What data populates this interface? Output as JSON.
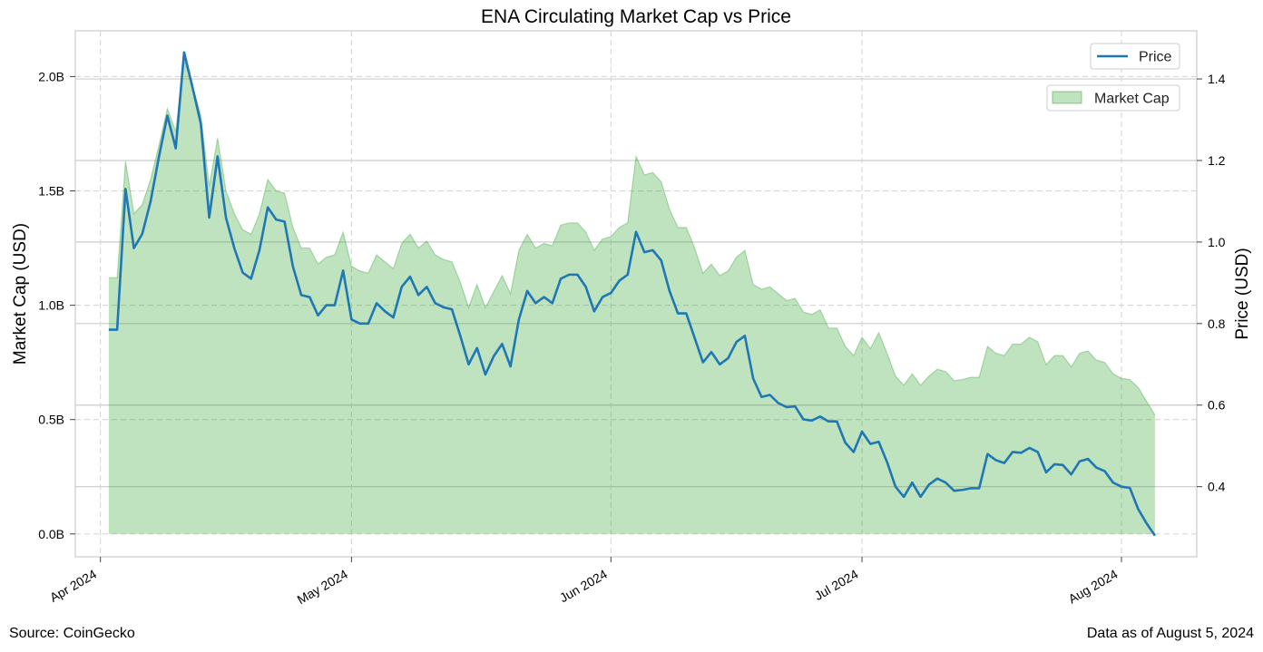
{
  "chart_data": {
    "type": "line",
    "title": "ENA Circulating Market Cap vs Price",
    "xlabel": "",
    "ylabel_left": "Market Cap (USD)",
    "ylabel_right": "Price (USD)",
    "x_ticks": [
      "Apr 2024",
      "May 2024",
      "Jun 2024",
      "Jul 2024",
      "Aug 2024"
    ],
    "x_range": [
      "2024-03-29",
      "2024-08-10"
    ],
    "y_left_range": [
      -0.1,
      2.2
    ],
    "y_left_ticks": [
      0,
      0.5,
      1.0,
      1.5,
      2.0
    ],
    "y_left_tick_labels": [
      "0.0B",
      "0.5B",
      "1.0B",
      "1.5B",
      "2.0B"
    ],
    "y_right_range": [
      0.228,
      1.518
    ],
    "y_right_ticks": [
      0.4,
      0.6,
      0.8,
      1.0,
      1.2,
      1.4
    ],
    "y_right_tick_labels": [
      "0.4",
      "0.6",
      "0.8",
      "1.0",
      "1.2",
      "1.4"
    ],
    "grid": true,
    "legend_top": "top-right",
    "legend_second": "top-right, below first",
    "series": [
      {
        "name": "Price",
        "axis": "right",
        "color": "#1f77b4",
        "type": "line",
        "points": [
          [
            "2024-04-02",
            0.785
          ],
          [
            "2024-04-03",
            0.785
          ],
          [
            "2024-04-04",
            1.13
          ],
          [
            "2024-04-05",
            0.985
          ],
          [
            "2024-04-06",
            1.02
          ],
          [
            "2024-04-07",
            1.1
          ],
          [
            "2024-04-08",
            1.21
          ],
          [
            "2024-04-09",
            1.31
          ],
          [
            "2024-04-10",
            1.23
          ],
          [
            "2024-04-11",
            1.465
          ],
          [
            "2024-04-12",
            1.38
          ],
          [
            "2024-04-13",
            1.29
          ],
          [
            "2024-04-14",
            1.06
          ],
          [
            "2024-04-15",
            1.21
          ],
          [
            "2024-04-16",
            1.06
          ],
          [
            "2024-04-17",
            0.985
          ],
          [
            "2024-04-18",
            0.925
          ],
          [
            "2024-04-19",
            0.91
          ],
          [
            "2024-04-20",
            0.98
          ],
          [
            "2024-04-21",
            1.085
          ],
          [
            "2024-04-22",
            1.055
          ],
          [
            "2024-04-23",
            1.05
          ],
          [
            "2024-04-24",
            0.94
          ],
          [
            "2024-04-25",
            0.87
          ],
          [
            "2024-04-26",
            0.865
          ],
          [
            "2024-04-27",
            0.82
          ],
          [
            "2024-04-28",
            0.845
          ],
          [
            "2024-04-29",
            0.845
          ],
          [
            "2024-04-30",
            0.93
          ],
          [
            "2024-05-01",
            0.81
          ],
          [
            "2024-05-02",
            0.8
          ],
          [
            "2024-05-03",
            0.8
          ],
          [
            "2024-05-04",
            0.85
          ],
          [
            "2024-05-05",
            0.83
          ],
          [
            "2024-05-06",
            0.815
          ],
          [
            "2024-05-07",
            0.89
          ],
          [
            "2024-05-08",
            0.915
          ],
          [
            "2024-05-09",
            0.87
          ],
          [
            "2024-05-10",
            0.89
          ],
          [
            "2024-05-11",
            0.85
          ],
          [
            "2024-05-12",
            0.84
          ],
          [
            "2024-05-13",
            0.835
          ],
          [
            "2024-05-14",
            0.77
          ],
          [
            "2024-05-15",
            0.7
          ],
          [
            "2024-05-16",
            0.74
          ],
          [
            "2024-05-17",
            0.675
          ],
          [
            "2024-05-18",
            0.72
          ],
          [
            "2024-05-19",
            0.75
          ],
          [
            "2024-05-20",
            0.695
          ],
          [
            "2024-05-21",
            0.81
          ],
          [
            "2024-05-22",
            0.88
          ],
          [
            "2024-05-23",
            0.85
          ],
          [
            "2024-05-24",
            0.865
          ],
          [
            "2024-05-25",
            0.85
          ],
          [
            "2024-05-26",
            0.91
          ],
          [
            "2024-05-27",
            0.92
          ],
          [
            "2024-05-28",
            0.92
          ],
          [
            "2024-05-29",
            0.89
          ],
          [
            "2024-05-30",
            0.83
          ],
          [
            "2024-05-31",
            0.865
          ],
          [
            "2024-06-01",
            0.875
          ],
          [
            "2024-06-02",
            0.905
          ],
          [
            "2024-06-03",
            0.92
          ],
          [
            "2024-06-04",
            1.025
          ],
          [
            "2024-06-05",
            0.975
          ],
          [
            "2024-06-06",
            0.98
          ],
          [
            "2024-06-07",
            0.955
          ],
          [
            "2024-06-08",
            0.88
          ],
          [
            "2024-06-09",
            0.825
          ],
          [
            "2024-06-10",
            0.825
          ],
          [
            "2024-06-11",
            0.765
          ],
          [
            "2024-06-12",
            0.705
          ],
          [
            "2024-06-13",
            0.73
          ],
          [
            "2024-06-14",
            0.7
          ],
          [
            "2024-06-15",
            0.715
          ],
          [
            "2024-06-16",
            0.755
          ],
          [
            "2024-06-17",
            0.77
          ],
          [
            "2024-06-18",
            0.665
          ],
          [
            "2024-06-19",
            0.62
          ],
          [
            "2024-06-20",
            0.625
          ],
          [
            "2024-06-21",
            0.605
          ],
          [
            "2024-06-22",
            0.595
          ],
          [
            "2024-06-23",
            0.597
          ],
          [
            "2024-06-24",
            0.565
          ],
          [
            "2024-06-25",
            0.562
          ],
          [
            "2024-06-26",
            0.572
          ],
          [
            "2024-06-27",
            0.56
          ],
          [
            "2024-06-28",
            0.56
          ],
          [
            "2024-06-29",
            0.508
          ],
          [
            "2024-06-30",
            0.485
          ],
          [
            "2024-07-01",
            0.535
          ],
          [
            "2024-07-02",
            0.505
          ],
          [
            "2024-07-03",
            0.51
          ],
          [
            "2024-07-04",
            0.46
          ],
          [
            "2024-07-05",
            0.4
          ],
          [
            "2024-07-06",
            0.375
          ],
          [
            "2024-07-07",
            0.41
          ],
          [
            "2024-07-08",
            0.375
          ],
          [
            "2024-07-09",
            0.405
          ],
          [
            "2024-07-10",
            0.42
          ],
          [
            "2024-07-11",
            0.41
          ],
          [
            "2024-07-12",
            0.39
          ],
          [
            "2024-07-13",
            0.392
          ],
          [
            "2024-07-14",
            0.396
          ],
          [
            "2024-07-15",
            0.396
          ],
          [
            "2024-07-16",
            0.48
          ],
          [
            "2024-07-17",
            0.465
          ],
          [
            "2024-07-18",
            0.458
          ],
          [
            "2024-07-19",
            0.485
          ],
          [
            "2024-07-20",
            0.483
          ],
          [
            "2024-07-21",
            0.495
          ],
          [
            "2024-07-22",
            0.485
          ],
          [
            "2024-07-23",
            0.435
          ],
          [
            "2024-07-24",
            0.455
          ],
          [
            "2024-07-25",
            0.453
          ],
          [
            "2024-07-26",
            0.43
          ],
          [
            "2024-07-27",
            0.462
          ],
          [
            "2024-07-28",
            0.468
          ],
          [
            "2024-07-29",
            0.447
          ],
          [
            "2024-07-30",
            0.438
          ],
          [
            "2024-07-31",
            0.41
          ],
          [
            "2024-08-01",
            0.4
          ],
          [
            "2024-08-02",
            0.397
          ],
          [
            "2024-08-03",
            0.345
          ],
          [
            "2024-08-04",
            0.31
          ],
          [
            "2024-08-05",
            0.28
          ]
        ]
      },
      {
        "name": "Market Cap",
        "axis": "left",
        "color": "#2ca02c",
        "type": "area",
        "points": [
          [
            "2024-04-02",
            1.12
          ],
          [
            "2024-04-03",
            1.12
          ],
          [
            "2024-04-04",
            1.63
          ],
          [
            "2024-04-05",
            1.4
          ],
          [
            "2024-04-06",
            1.44
          ],
          [
            "2024-04-07",
            1.55
          ],
          [
            "2024-04-08",
            1.7
          ],
          [
            "2024-04-09",
            1.86
          ],
          [
            "2024-04-10",
            1.76
          ],
          [
            "2024-04-11",
            2.07
          ],
          [
            "2024-04-12",
            1.96
          ],
          [
            "2024-04-13",
            1.83
          ],
          [
            "2024-04-14",
            1.52
          ],
          [
            "2024-04-15",
            1.73
          ],
          [
            "2024-04-16",
            1.5
          ],
          [
            "2024-04-17",
            1.4
          ],
          [
            "2024-04-18",
            1.33
          ],
          [
            "2024-04-19",
            1.31
          ],
          [
            "2024-04-20",
            1.4
          ],
          [
            "2024-04-21",
            1.55
          ],
          [
            "2024-04-22",
            1.5
          ],
          [
            "2024-04-23",
            1.49
          ],
          [
            "2024-04-24",
            1.34
          ],
          [
            "2024-04-25",
            1.25
          ],
          [
            "2024-04-26",
            1.25
          ],
          [
            "2024-04-27",
            1.18
          ],
          [
            "2024-04-28",
            1.21
          ],
          [
            "2024-04-29",
            1.22
          ],
          [
            "2024-04-30",
            1.32
          ],
          [
            "2024-05-01",
            1.17
          ],
          [
            "2024-05-02",
            1.15
          ],
          [
            "2024-05-03",
            1.14
          ],
          [
            "2024-05-04",
            1.22
          ],
          [
            "2024-05-05",
            1.19
          ],
          [
            "2024-05-06",
            1.16
          ],
          [
            "2024-05-07",
            1.27
          ],
          [
            "2024-05-08",
            1.31
          ],
          [
            "2024-05-09",
            1.25
          ],
          [
            "2024-05-10",
            1.28
          ],
          [
            "2024-05-11",
            1.22
          ],
          [
            "2024-05-12",
            1.2
          ],
          [
            "2024-05-13",
            1.19
          ],
          [
            "2024-05-14",
            1.1
          ],
          [
            "2024-05-15",
            0.99
          ],
          [
            "2024-05-16",
            1.09
          ],
          [
            "2024-05-17",
            0.99
          ],
          [
            "2024-05-18",
            1.06
          ],
          [
            "2024-05-19",
            1.13
          ],
          [
            "2024-05-20",
            1.05
          ],
          [
            "2024-05-21",
            1.24
          ],
          [
            "2024-05-22",
            1.31
          ],
          [
            "2024-05-23",
            1.25
          ],
          [
            "2024-05-24",
            1.27
          ],
          [
            "2024-05-25",
            1.26
          ],
          [
            "2024-05-26",
            1.35
          ],
          [
            "2024-05-27",
            1.36
          ],
          [
            "2024-05-28",
            1.36
          ],
          [
            "2024-05-29",
            1.32
          ],
          [
            "2024-05-30",
            1.24
          ],
          [
            "2024-05-31",
            1.29
          ],
          [
            "2024-06-01",
            1.3
          ],
          [
            "2024-06-02",
            1.34
          ],
          [
            "2024-06-03",
            1.36
          ],
          [
            "2024-06-04",
            1.65
          ],
          [
            "2024-06-05",
            1.57
          ],
          [
            "2024-06-06",
            1.58
          ],
          [
            "2024-06-07",
            1.54
          ],
          [
            "2024-06-08",
            1.42
          ],
          [
            "2024-06-09",
            1.34
          ],
          [
            "2024-06-10",
            1.34
          ],
          [
            "2024-06-11",
            1.25
          ],
          [
            "2024-06-12",
            1.14
          ],
          [
            "2024-06-13",
            1.18
          ],
          [
            "2024-06-14",
            1.13
          ],
          [
            "2024-06-15",
            1.15
          ],
          [
            "2024-06-16",
            1.21
          ],
          [
            "2024-06-17",
            1.24
          ],
          [
            "2024-06-18",
            1.09
          ],
          [
            "2024-06-19",
            1.07
          ],
          [
            "2024-06-20",
            1.08
          ],
          [
            "2024-06-21",
            1.05
          ],
          [
            "2024-06-22",
            1.02
          ],
          [
            "2024-06-23",
            1.03
          ],
          [
            "2024-06-24",
            0.97
          ],
          [
            "2024-06-25",
            0.96
          ],
          [
            "2024-06-26",
            0.98
          ],
          [
            "2024-06-27",
            0.9
          ],
          [
            "2024-06-28",
            0.9
          ],
          [
            "2024-06-29",
            0.82
          ],
          [
            "2024-06-30",
            0.78
          ],
          [
            "2024-07-01",
            0.86
          ],
          [
            "2024-07-02",
            0.81
          ],
          [
            "2024-07-03",
            0.88
          ],
          [
            "2024-07-04",
            0.79
          ],
          [
            "2024-07-05",
            0.69
          ],
          [
            "2024-07-06",
            0.65
          ],
          [
            "2024-07-07",
            0.7
          ],
          [
            "2024-07-08",
            0.65
          ],
          [
            "2024-07-09",
            0.69
          ],
          [
            "2024-07-10",
            0.72
          ],
          [
            "2024-07-11",
            0.71
          ],
          [
            "2024-07-12",
            0.67
          ],
          [
            "2024-07-13",
            0.675
          ],
          [
            "2024-07-14",
            0.685
          ],
          [
            "2024-07-15",
            0.685
          ],
          [
            "2024-07-16",
            0.82
          ],
          [
            "2024-07-17",
            0.79
          ],
          [
            "2024-07-18",
            0.78
          ],
          [
            "2024-07-19",
            0.83
          ],
          [
            "2024-07-20",
            0.83
          ],
          [
            "2024-07-21",
            0.86
          ],
          [
            "2024-07-22",
            0.84
          ],
          [
            "2024-07-23",
            0.74
          ],
          [
            "2024-07-24",
            0.78
          ],
          [
            "2024-07-25",
            0.78
          ],
          [
            "2024-07-26",
            0.73
          ],
          [
            "2024-07-27",
            0.79
          ],
          [
            "2024-07-28",
            0.8
          ],
          [
            "2024-07-29",
            0.76
          ],
          [
            "2024-07-30",
            0.75
          ],
          [
            "2024-07-31",
            0.7
          ],
          [
            "2024-08-01",
            0.68
          ],
          [
            "2024-08-02",
            0.675
          ],
          [
            "2024-08-03",
            0.64
          ],
          [
            "2024-08-04",
            0.58
          ],
          [
            "2024-08-05",
            0.52
          ]
        ]
      }
    ]
  },
  "footer": {
    "source": "Source: CoinGecko",
    "asof": "Data as of August 5, 2024"
  }
}
